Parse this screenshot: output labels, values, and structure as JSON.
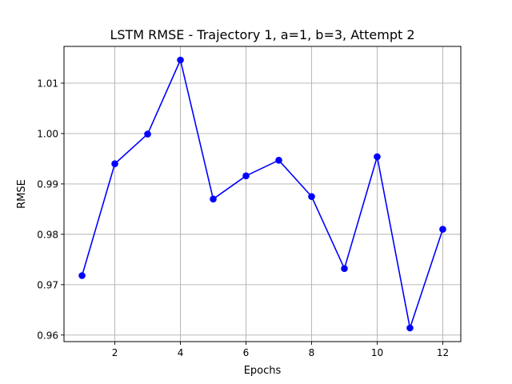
{
  "chart_data": {
    "type": "line",
    "title": "LSTM RMSE - Trajectory 1, a=1, b=3, Attempt 2",
    "xlabel": "Epochs",
    "ylabel": "RMSE",
    "x": [
      1,
      2,
      3,
      4,
      5,
      6,
      7,
      8,
      9,
      10,
      11,
      12
    ],
    "series": [
      {
        "values": [
          0.9718,
          0.994,
          0.9999,
          1.0146,
          0.987,
          0.9916,
          0.9947,
          0.9875,
          0.9732,
          0.9954,
          0.9614,
          0.981
        ],
        "color": "#0000ff",
        "marker": "circle"
      }
    ],
    "xlim": [
      0.45,
      12.55
    ],
    "ylim": [
      0.9587,
      1.0173
    ],
    "xticks": [
      2,
      4,
      6,
      8,
      10,
      12
    ],
    "xtick_labels": [
      "2",
      "4",
      "6",
      "8",
      "10",
      "12"
    ],
    "yticks": [
      0.96,
      0.97,
      0.98,
      0.99,
      1.0,
      1.01
    ],
    "ytick_labels": [
      "0.96",
      "0.97",
      "0.98",
      "0.99",
      "1.00",
      "1.01"
    ],
    "grid": true
  }
}
